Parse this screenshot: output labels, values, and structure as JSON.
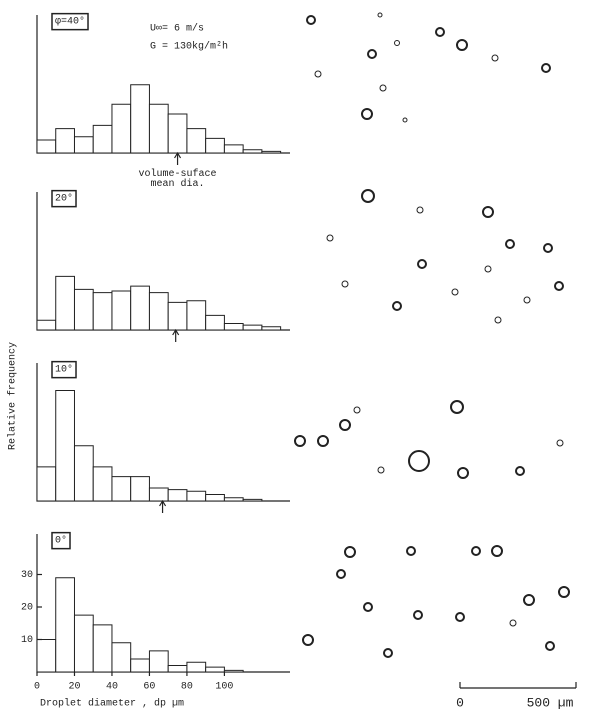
{
  "chart_data": [
    {
      "type": "histogram",
      "panel_label": "φ=40°",
      "conditions": [
        "U∞= 6 m/s",
        "G = 130kg/m²h"
      ],
      "annotation": "volume-suface\nmean dia.",
      "mean_arrow": 75,
      "bins": [
        0,
        10,
        20,
        30,
        40,
        50,
        60,
        70,
        80,
        90,
        100,
        110,
        120,
        130
      ],
      "values": [
        4,
        7.5,
        5,
        8.5,
        15,
        21,
        15,
        12,
        7.5,
        4.5,
        2.5,
        1,
        0.5
      ],
      "xlim": [
        0,
        135
      ],
      "ylim": [
        0,
        40
      ]
    },
    {
      "type": "histogram",
      "panel_label": "20°",
      "mean_arrow": 74,
      "bins": [
        0,
        10,
        20,
        30,
        40,
        50,
        60,
        70,
        80,
        90,
        100,
        110,
        120,
        130
      ],
      "values": [
        3,
        16.5,
        12.5,
        11.5,
        12,
        13.5,
        11.5,
        8.5,
        9,
        4.5,
        2,
        1.5,
        1
      ],
      "xlim": [
        0,
        135
      ],
      "ylim": [
        0,
        40
      ]
    },
    {
      "type": "histogram",
      "panel_label": "10°",
      "mean_arrow": 67,
      "ylabel": "Relative frequency",
      "bins": [
        0,
        10,
        20,
        30,
        40,
        50,
        60,
        70,
        80,
        90,
        100,
        110,
        120
      ],
      "values": [
        10.5,
        34,
        17,
        10.5,
        7.5,
        7.5,
        4,
        3.5,
        3,
        2,
        1,
        0.5
      ],
      "xlim": [
        0,
        135
      ],
      "ylim": [
        0,
        40
      ]
    },
    {
      "type": "histogram",
      "panel_label": "0°",
      "xlabel": "Droplet diameter , dp  µm",
      "bins": [
        0,
        10,
        20,
        30,
        40,
        50,
        60,
        70,
        80,
        90,
        100,
        110
      ],
      "values": [
        10,
        29,
        17.5,
        14.5,
        9,
        4,
        6.5,
        2,
        3,
        1.5,
        0.5
      ],
      "xlim": [
        0,
        135
      ],
      "ylim": [
        0,
        40
      ],
      "xticks": [
        0,
        20,
        40,
        60,
        80,
        100
      ],
      "yticks": [
        10,
        20,
        30
      ]
    }
  ],
  "scale_bar": {
    "start": "0",
    "end": "500 µm"
  }
}
